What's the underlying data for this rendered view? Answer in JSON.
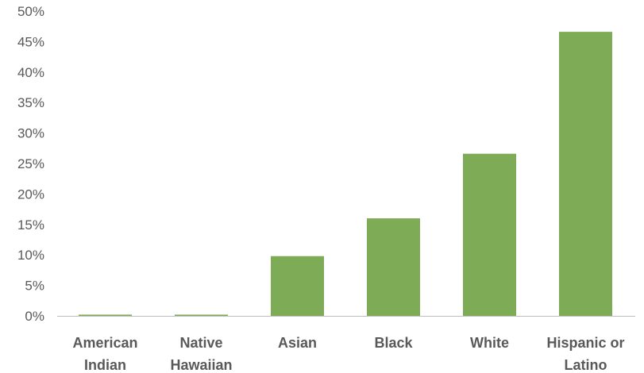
{
  "chart_data": {
    "type": "bar",
    "categories": [
      [
        "American",
        "Indian"
      ],
      [
        "Native",
        "Hawaiian"
      ],
      [
        "Asian"
      ],
      [
        "Black"
      ],
      [
        "White"
      ],
      [
        "Hispanic or",
        "Latino"
      ]
    ],
    "values": [
      0.2,
      0.2,
      9.8,
      16.0,
      26.6,
      46.6
    ],
    "ylim": [
      0,
      50
    ],
    "yticks": [
      "0%",
      "5%",
      "10%",
      "15%",
      "20%",
      "25%",
      "30%",
      "35%",
      "40%",
      "45%",
      "50%"
    ],
    "bar_color": "#7eab55",
    "axis_color": "#bfbfbf",
    "grid": false,
    "legend": "none",
    "title": "",
    "xlabel": "",
    "ylabel": ""
  }
}
